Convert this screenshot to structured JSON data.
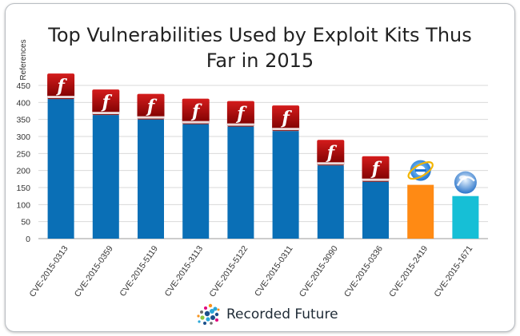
{
  "chart_data": {
    "type": "bar",
    "title_lines": [
      "Top Vulnerabilities Used by Exploit Kits Thus",
      "Far in 2015"
    ],
    "ylabel": "References",
    "xlabel": "",
    "ylim": [
      0,
      450
    ],
    "yticks": [
      0,
      50,
      100,
      150,
      200,
      250,
      300,
      350,
      400,
      450
    ],
    "categories": [
      "CVE-2015-0313",
      "CVE-2015-0359",
      "CVE-2015-5119",
      "CVE-2015-3113",
      "CVE-2015-5122",
      "CVE-2015-0311",
      "CVE-2015-3090",
      "CVE-2015-0336",
      "CVE-2015-2419",
      "CVE-2015-1671"
    ],
    "values": [
      410,
      363,
      350,
      336,
      329,
      316,
      215,
      167,
      158,
      125
    ],
    "bar_colors": [
      "#0a6fb6",
      "#0a6fb6",
      "#0a6fb6",
      "#0a6fb6",
      "#0a6fb6",
      "#0a6fb6",
      "#0a6fb6",
      "#0a6fb6",
      "#ff8a14",
      "#16bfd6"
    ],
    "icons": [
      "flash-icon",
      "flash-icon",
      "flash-icon",
      "flash-icon",
      "flash-icon",
      "flash-icon",
      "flash-icon",
      "flash-icon",
      "internet-explorer-icon",
      "silverlight-icon"
    ],
    "grid": true,
    "legend": "none"
  },
  "brand": {
    "name": "Recorded Future",
    "dot_colors": [
      "#1a4f8a",
      "#2aa7d8",
      "#e1007a",
      "#f7931e",
      "#8cc63f",
      "#6b6b6b"
    ]
  }
}
